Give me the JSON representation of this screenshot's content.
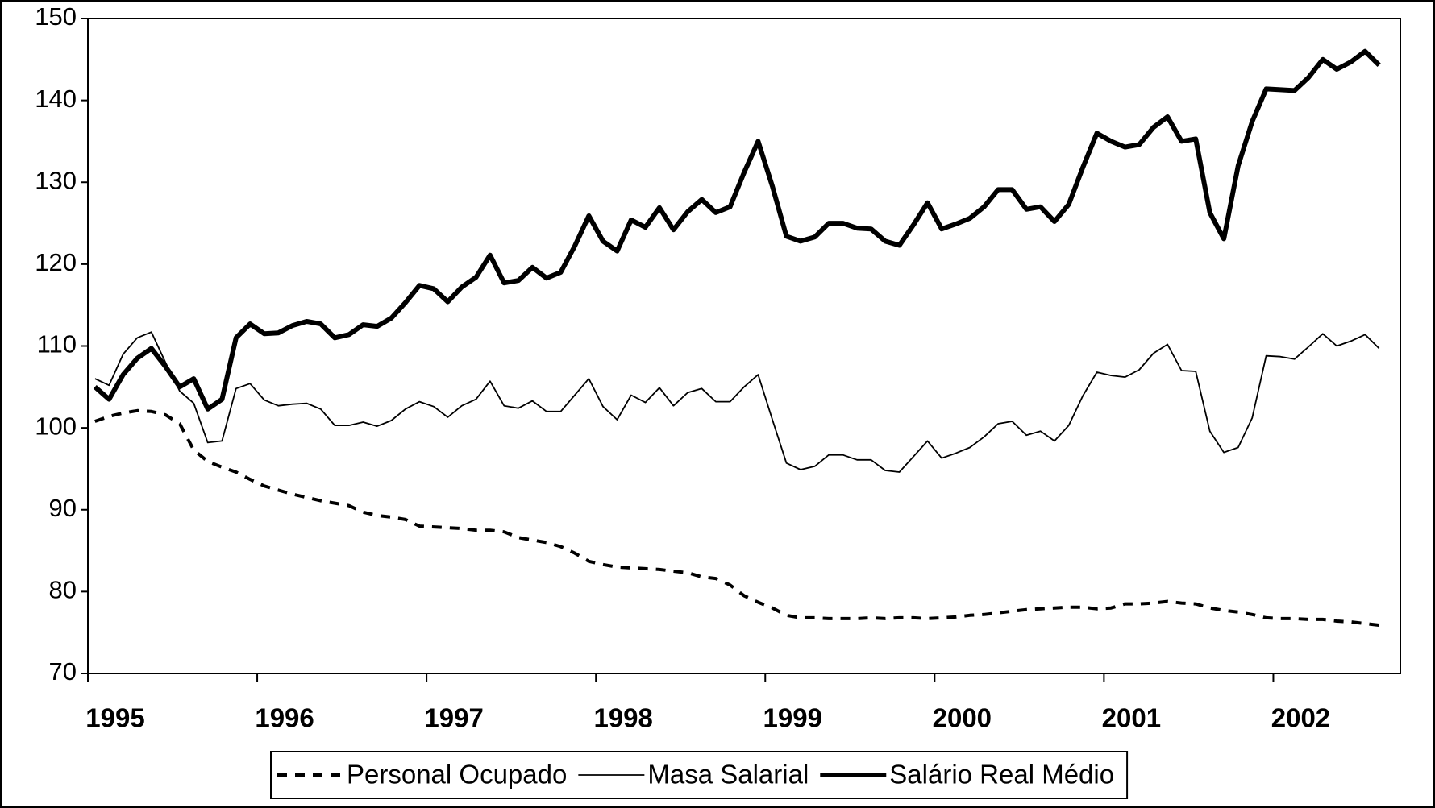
{
  "chart_data": {
    "type": "line",
    "x": [
      1995.042,
      1995.125,
      1995.208,
      1995.292,
      1995.375,
      1995.458,
      1995.542,
      1995.625,
      1995.708,
      1995.792,
      1995.875,
      1995.958,
      1996.042,
      1996.125,
      1996.208,
      1996.292,
      1996.375,
      1996.458,
      1996.542,
      1996.625,
      1996.708,
      1996.792,
      1996.875,
      1996.958,
      1997.042,
      1997.125,
      1997.208,
      1997.292,
      1997.375,
      1997.458,
      1997.542,
      1997.625,
      1997.708,
      1997.792,
      1997.875,
      1997.958,
      1998.042,
      1998.125,
      1998.208,
      1998.292,
      1998.375,
      1998.458,
      1998.542,
      1998.625,
      1998.708,
      1998.792,
      1998.875,
      1998.958,
      1999.042,
      1999.125,
      1999.208,
      1999.292,
      1999.375,
      1999.458,
      1999.542,
      1999.625,
      1999.708,
      1999.792,
      1999.875,
      1999.958,
      2000.042,
      2000.125,
      2000.208,
      2000.292,
      2000.375,
      2000.458,
      2000.542,
      2000.625,
      2000.708,
      2000.792,
      2000.875,
      2000.958,
      2001.042,
      2001.125,
      2001.208,
      2001.292,
      2001.375,
      2001.458,
      2001.542,
      2001.625,
      2001.708,
      2001.792,
      2001.875,
      2001.958,
      2002.042,
      2002.125,
      2002.208,
      2002.292,
      2002.375,
      2002.458,
      2002.542,
      2002.625
    ],
    "series": [
      {
        "name": "Personal Ocupado",
        "color": "#000000",
        "style": "dashed",
        "width": 4,
        "values": [
          100.8,
          101.4,
          101.8,
          102.1,
          102,
          101.6,
          100.5,
          97.3,
          95.9,
          95.2,
          94.6,
          93.7,
          92.9,
          92.4,
          91.9,
          91.5,
          91.1,
          90.8,
          90.5,
          89.7,
          89.3,
          89.1,
          88.8,
          88,
          87.9,
          87.8,
          87.7,
          87.5,
          87.5,
          87.3,
          86.6,
          86.3,
          86,
          85.5,
          84.7,
          83.7,
          83.3,
          83,
          82.9,
          82.8,
          82.7,
          82.5,
          82.3,
          81.8,
          81.6,
          80.8,
          79.5,
          78.7,
          78,
          77.1,
          76.8,
          76.8,
          76.7,
          76.7,
          76.7,
          76.8,
          76.7,
          76.8,
          76.8,
          76.7,
          76.8,
          76.9,
          77.1,
          77.2,
          77.4,
          77.6,
          77.8,
          77.9,
          78,
          78.1,
          78.1,
          77.9,
          78,
          78.5,
          78.5,
          78.6,
          78.8,
          78.6,
          78.5,
          78,
          77.7,
          77.5,
          77.2,
          76.8,
          76.7,
          76.7,
          76.6,
          76.6,
          76.4,
          76.3,
          76.1,
          75.9
        ]
      },
      {
        "name": "Masa Salarial",
        "color": "#000000",
        "style": "solid",
        "width": 1.8,
        "values": [
          106,
          105.2,
          109,
          111,
          111.7,
          108,
          104.5,
          103,
          98.2,
          98.4,
          104.8,
          105.4,
          103.4,
          102.7,
          102.9,
          103,
          102.3,
          100.3,
          100.3,
          100.7,
          100.2,
          100.9,
          102.3,
          103.2,
          102.6,
          101.3,
          102.7,
          103.5,
          105.7,
          102.7,
          102.4,
          103.3,
          102,
          102,
          104,
          106,
          102.6,
          101,
          104,
          103.1,
          104.9,
          102.7,
          104.3,
          104.8,
          103.2,
          103.2,
          105,
          106.5,
          101,
          95.7,
          94.9,
          95.3,
          96.7,
          96.7,
          96.1,
          96.1,
          94.8,
          94.6,
          96.5,
          98.4,
          96.3,
          96.9,
          97.6,
          98.9,
          100.5,
          100.8,
          99.1,
          99.6,
          98.4,
          100.3,
          103.9,
          106.8,
          106.4,
          106.2,
          107.1,
          109.1,
          110.2,
          107,
          106.9,
          99.6,
          97,
          97.6,
          101.2,
          108.8,
          108.7,
          108.4,
          109.9,
          111.5,
          110,
          110.6,
          111.4,
          109.7
        ]
      },
      {
        "name": "Salário Real Médio",
        "color": "#000000",
        "style": "solid",
        "width": 6,
        "values": [
          105,
          103.5,
          106.5,
          108.5,
          109.7,
          107.5,
          105,
          106,
          102.3,
          103.5,
          111,
          112.7,
          111.5,
          111.6,
          112.5,
          113,
          112.7,
          111,
          111.4,
          112.6,
          112.4,
          113.4,
          115.3,
          117.4,
          117,
          115.4,
          117.2,
          118.4,
          121.1,
          117.7,
          118,
          119.6,
          118.3,
          119,
          122.2,
          125.9,
          122.8,
          121.6,
          125.4,
          124.5,
          126.9,
          124.2,
          126.4,
          127.9,
          126.3,
          127,
          131.2,
          135,
          129.5,
          123.4,
          122.8,
          123.3,
          125,
          125,
          124.4,
          124.3,
          122.8,
          122.3,
          124.8,
          127.5,
          124.3,
          124.9,
          125.6,
          127,
          129.1,
          129.1,
          126.7,
          127,
          125.2,
          127.3,
          131.8,
          136,
          135,
          134.3,
          134.6,
          136.7,
          138,
          135,
          135.3,
          126.3,
          123.1,
          132,
          137.4,
          141.4,
          141.3,
          141.2,
          142.8,
          145,
          143.8,
          144.7,
          146,
          144.3
        ]
      }
    ],
    "xlim": [
      1995,
      2002.75
    ],
    "xticks": [
      1995,
      1996,
      1997,
      1998,
      1999,
      2000,
      2001,
      2002
    ],
    "ylim": [
      70,
      150
    ],
    "yticks": [
      70,
      80,
      90,
      100,
      110,
      120,
      130,
      140,
      150
    ],
    "grid": false,
    "legend": "bottom"
  }
}
